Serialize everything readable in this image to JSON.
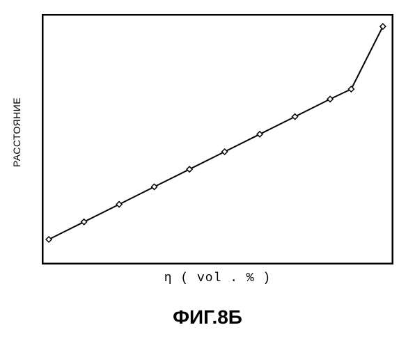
{
  "chart": {
    "type": "line",
    "ylabel": "РАССТОЯНИЕ",
    "ylabel_fontsize": 14,
    "xlabel": "η ( vol . % )",
    "xlabel_fontsize": 18,
    "caption": "ФИГ.8Б",
    "caption_fontsize": 28,
    "background_color": "#ffffff",
    "border_color": "#000000",
    "border_width": 2.5,
    "line_color": "#000000",
    "line_width": 2,
    "marker_style": "diamond",
    "marker_size": 4,
    "marker_stroke": "#000000",
    "marker_fill": "#ffffff",
    "xlim": [
      0,
      100
    ],
    "ylim": [
      0,
      100
    ],
    "points": [
      {
        "x": 2,
        "y": 10
      },
      {
        "x": 12,
        "y": 17
      },
      {
        "x": 22,
        "y": 24
      },
      {
        "x": 32,
        "y": 31
      },
      {
        "x": 42,
        "y": 38
      },
      {
        "x": 52,
        "y": 45
      },
      {
        "x": 62,
        "y": 52
      },
      {
        "x": 72,
        "y": 59
      },
      {
        "x": 82,
        "y": 66
      },
      {
        "x": 88,
        "y": 70
      },
      {
        "x": 97,
        "y": 95
      }
    ]
  }
}
